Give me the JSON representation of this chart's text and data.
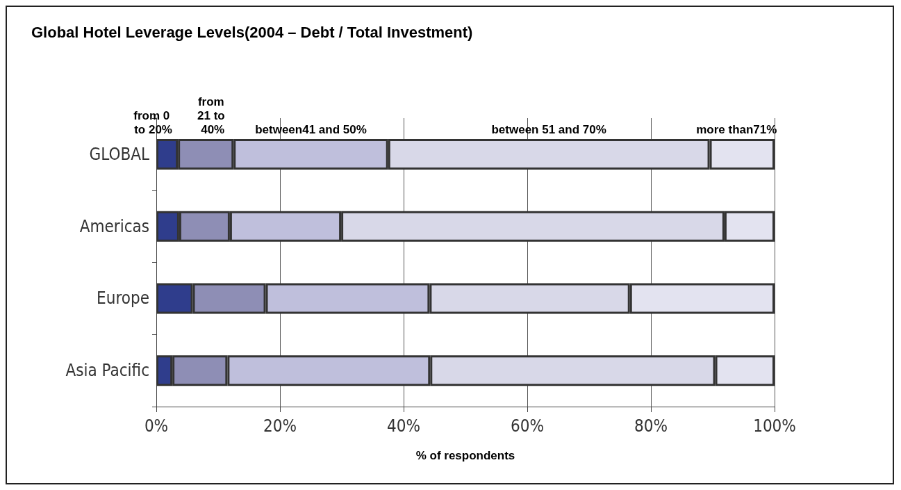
{
  "chart_data": {
    "type": "bar",
    "orientation": "horizontal",
    "stacked": true,
    "title": "Global Hotel Leverage Levels(2004 – Debt / Total Investment)",
    "xlabel": "% of respondents",
    "categories": [
      "GLOBAL",
      "Americas",
      "Europe",
      "Asia Pacific"
    ],
    "series": [
      {
        "name": "from 0 to 20%",
        "color": "#2f3d8c",
        "values": [
          3.5,
          3.7,
          5.9,
          2.6
        ]
      },
      {
        "name": "from 21 to 40%",
        "color": "#8e8eb5",
        "values": [
          9,
          8.2,
          11.8,
          8.9
        ]
      },
      {
        "name": "between41 and 50%",
        "color": "#bfbfdc",
        "values": [
          25,
          18,
          26.5,
          32.8
        ]
      },
      {
        "name": "between 51 and 70%",
        "color": "#d8d8e8",
        "values": [
          52,
          62,
          32.4,
          46.1
        ]
      },
      {
        "name": "more than71%",
        "color": "#e3e3f0",
        "values": [
          10.5,
          8.1,
          23.4,
          9.6
        ]
      }
    ],
    "xlim": [
      0,
      100
    ],
    "xticks": [
      {
        "value": 0,
        "label": "0%"
      },
      {
        "value": 20,
        "label": "20%"
      },
      {
        "value": 40,
        "label": "40%"
      },
      {
        "value": 60,
        "label": "60%"
      },
      {
        "value": 80,
        "label": "80%"
      },
      {
        "value": 100,
        "label": "100%"
      }
    ],
    "grid": "x",
    "legend": false
  }
}
